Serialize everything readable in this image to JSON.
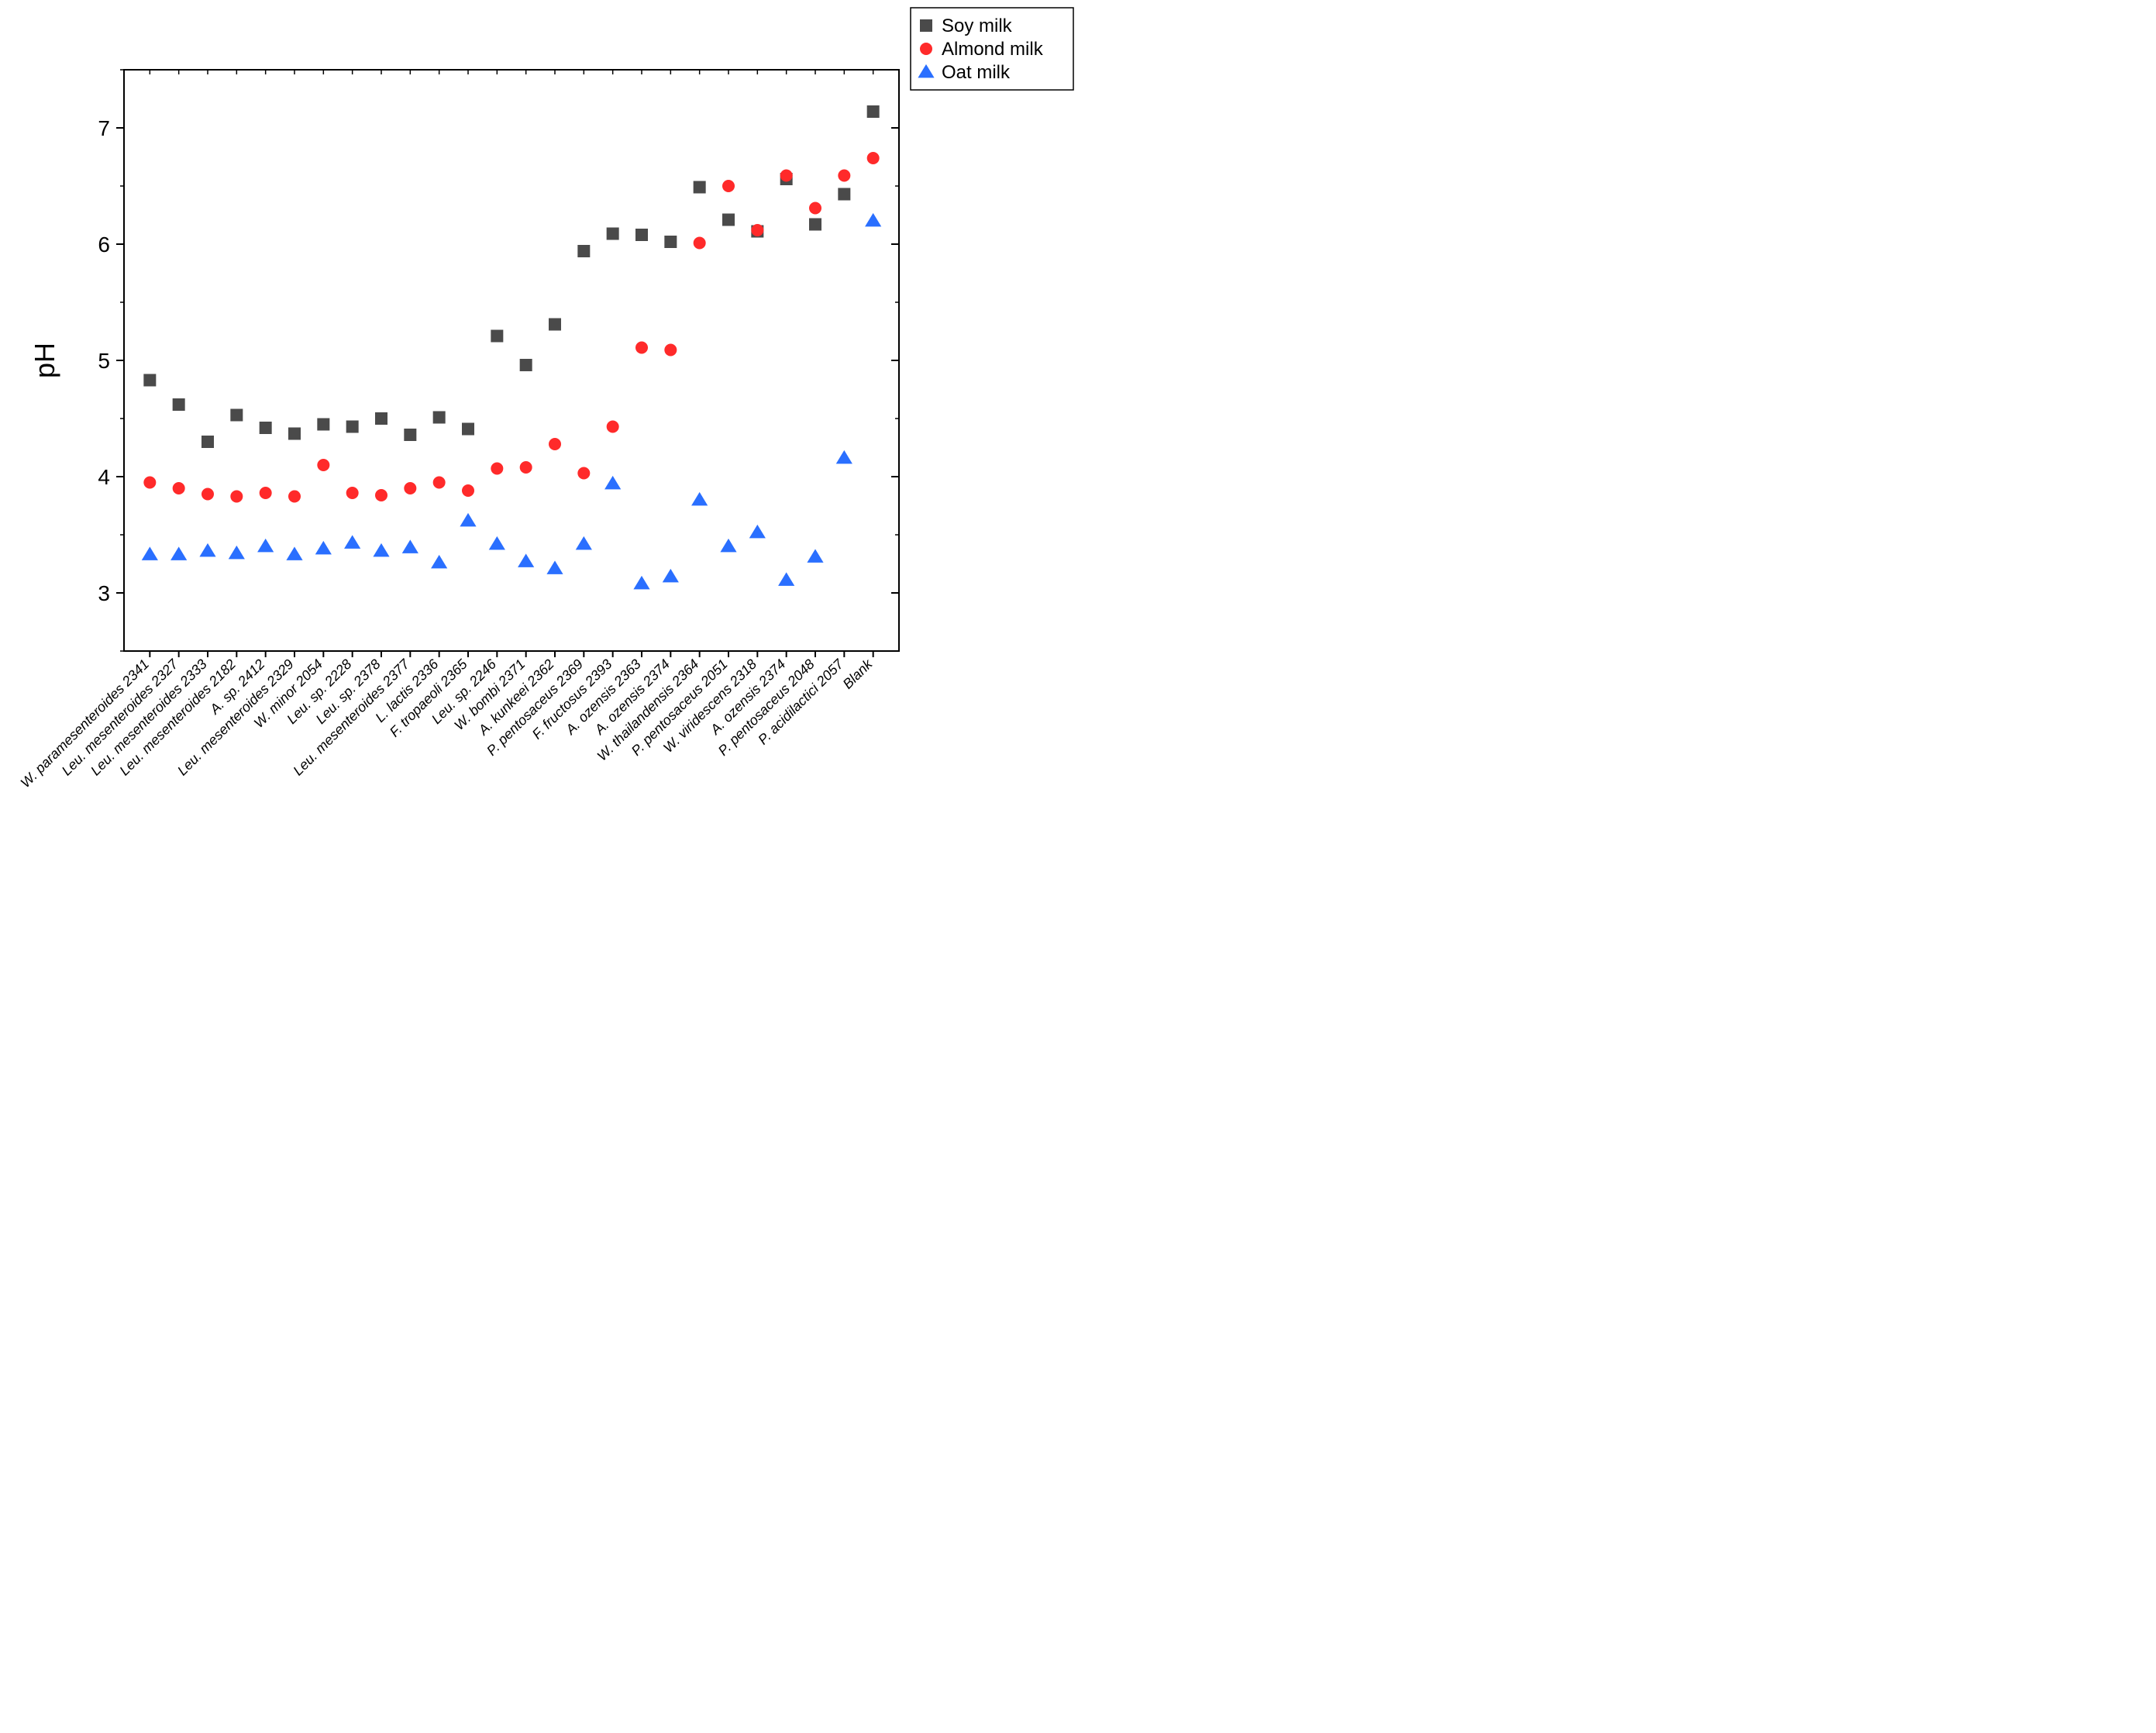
{
  "plot": {
    "type": "scatter",
    "ylabel": "pH",
    "ylabel_fontsize": 36,
    "ylim": [
      2.5,
      7.5
    ],
    "yticks": [
      3,
      4,
      5,
      6,
      7
    ],
    "y_minor_step": 0.5,
    "background_color": "#ffffff",
    "axis_color": "#000000",
    "series": {
      "soy": {
        "label": "Soy milk",
        "marker": "square",
        "color": "#4a4a4a",
        "size": 16,
        "values": [
          4.83,
          4.62,
          4.3,
          4.53,
          4.42,
          4.37,
          4.45,
          4.43,
          4.5,
          4.36,
          4.51,
          4.41,
          5.21,
          4.96,
          5.31,
          5.94,
          6.09,
          6.08,
          6.02,
          6.49,
          6.21,
          6.11,
          6.56,
          6.17,
          6.43,
          7.14
        ]
      },
      "almond": {
        "label": "Almond milk",
        "marker": "circle",
        "color": "#ff2a2a",
        "size": 16,
        "values": [
          3.95,
          3.9,
          3.85,
          3.83,
          3.86,
          3.83,
          4.1,
          3.86,
          3.84,
          3.9,
          3.95,
          3.88,
          4.07,
          4.08,
          4.28,
          4.03,
          4.43,
          5.11,
          5.09,
          6.01,
          6.5,
          6.12,
          6.59,
          6.31,
          6.59,
          6.74
        ]
      },
      "oat": {
        "label": "Oat milk",
        "marker": "triangle",
        "color": "#2a6fff",
        "size": 18,
        "values": [
          3.33,
          3.33,
          3.36,
          3.34,
          3.4,
          3.33,
          3.38,
          3.43,
          3.36,
          3.39,
          3.26,
          3.62,
          3.42,
          3.27,
          3.21,
          3.42,
          3.94,
          3.08,
          3.14,
          3.8,
          3.4,
          3.52,
          3.11,
          3.31,
          4.16,
          6.2
        ]
      }
    },
    "x_categories": [
      "W. paramesenteroides 2341",
      "Leu. mesenteroides 2327",
      "Leu. mesenteroides 2333",
      "Leu. mesenteroides 2182",
      "A. sp. 2412",
      "Leu. mesenteroides 2329",
      "W. minor 2054",
      "Leu. sp. 2228",
      "Leu. sp. 2378",
      "Leu. mesenteroides 2377",
      "L. lactis 2336",
      "F. tropaeoli 2365",
      "Leu. sp. 2246",
      "W. bombi 2371",
      "A. kunkeei 2362",
      "P. pentosaceus 2369",
      "F. fructosus 2393",
      "A. ozensis 2363",
      "A. ozensis 2374",
      "W. thailandensis 2364",
      "P. pentosaceus 2051",
      "W. viridescens 2318",
      "A. ozensis 2374",
      "P. pentosaceus 2048",
      "P. acidilactici 2057",
      "Blank"
    ],
    "legend": {
      "box_stroke": "#000000",
      "box_fill": "#ffffff",
      "font_size": 24,
      "position": "top-right"
    }
  }
}
